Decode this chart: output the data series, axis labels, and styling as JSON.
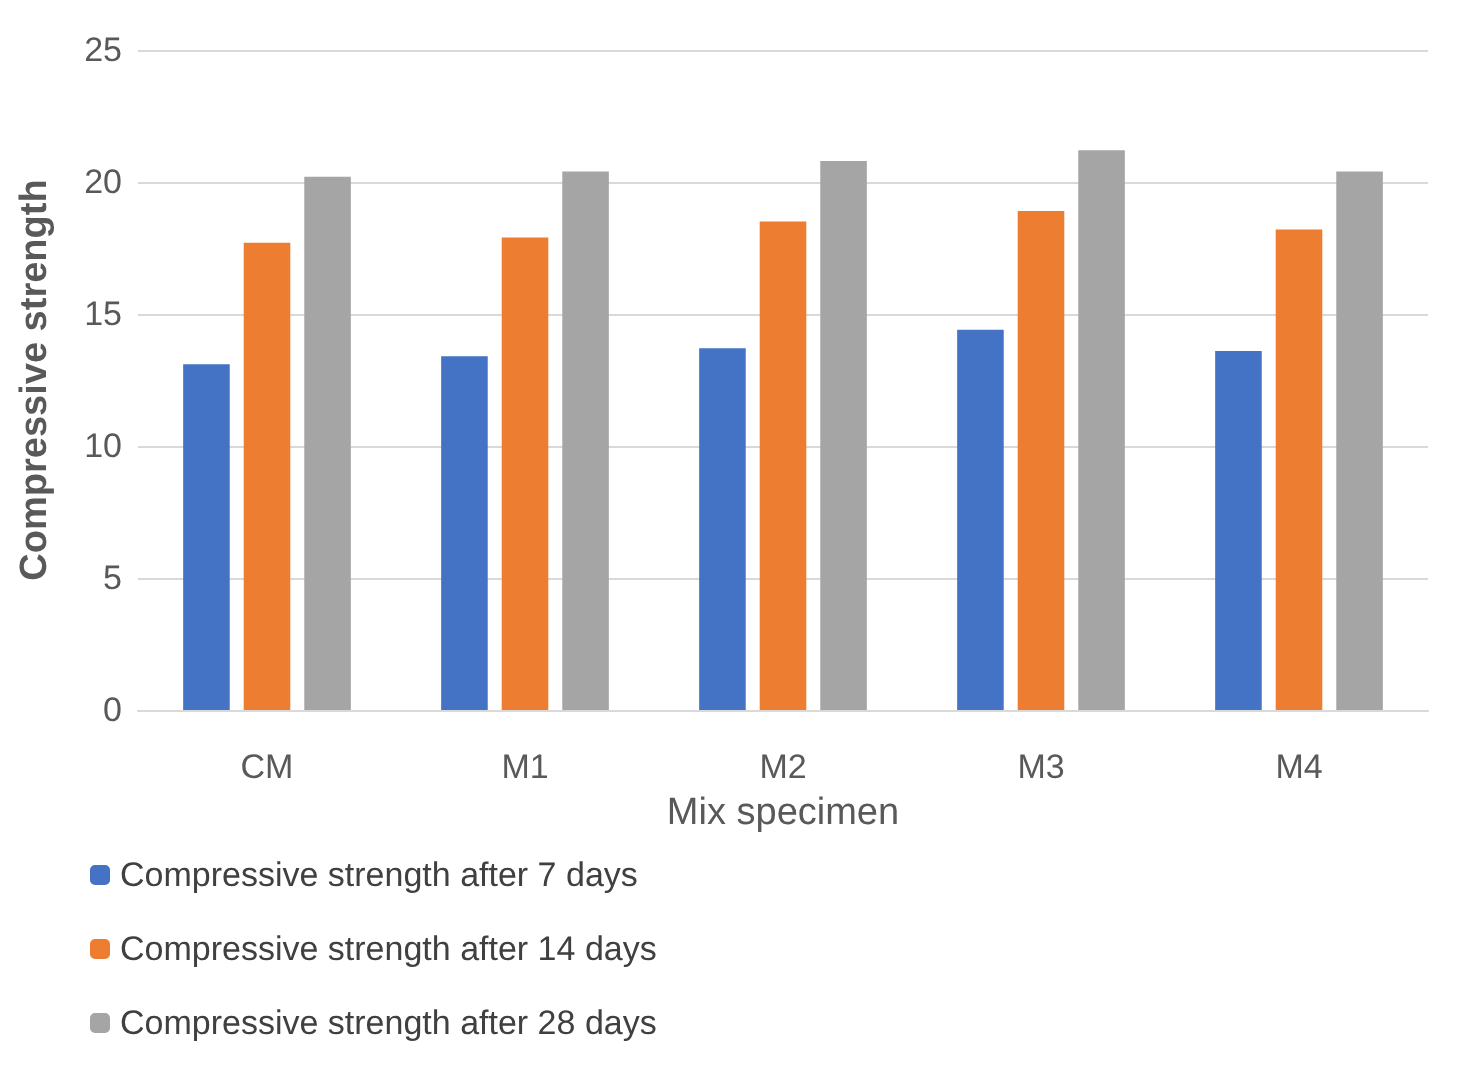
{
  "chart_data": {
    "type": "bar",
    "xlabel": "Mix specimen",
    "ylabel": "Compressive strength",
    "categories": [
      "CM",
      "M1",
      "M2",
      "M3",
      "M4"
    ],
    "series": [
      {
        "name": "Compressive strength after 7 days",
        "color": "#4472c4",
        "values": [
          13.1,
          13.4,
          13.7,
          14.4,
          13.6
        ]
      },
      {
        "name": "Compressive strength after 14 days",
        "color": "#ed7d31",
        "values": [
          17.7,
          17.9,
          18.5,
          18.9,
          18.2
        ]
      },
      {
        "name": "Compressive strength after 28 days",
        "color": "#a5a5a5",
        "values": [
          20.2,
          20.4,
          20.8,
          21.2,
          20.4
        ]
      }
    ],
    "ylim": [
      0,
      25
    ],
    "yticks": [
      0,
      5,
      10,
      15,
      20,
      25
    ],
    "grid": "y",
    "legend": "bottom"
  }
}
